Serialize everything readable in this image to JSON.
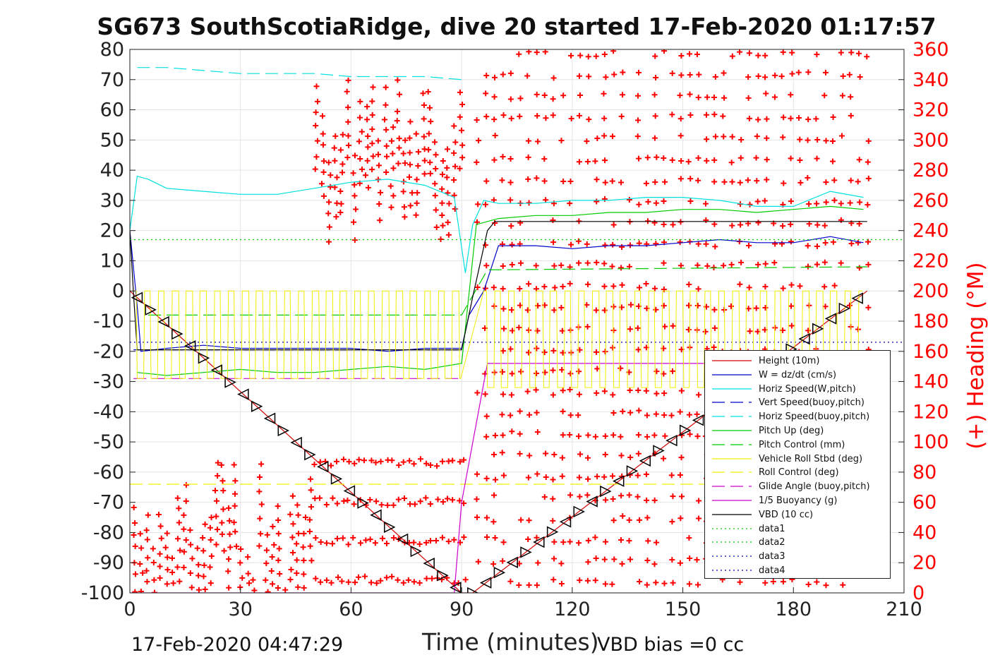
{
  "chart_data": {
    "title": "SG673 SouthScotiaRidge, dive 20 started 17-Feb-2020 01:17:57",
    "xlabel": "Time (minutes)",
    "ylabel_right": "(+) Heading (°M)",
    "footer_left": "17-Feb-2020 04:47:29",
    "footer_right": "VBD bias =0 cc",
    "xlim": [
      0,
      210
    ],
    "ylim_left": [
      -100,
      80
    ],
    "ylim_right": [
      0,
      360
    ],
    "xticks": [
      "0",
      "30",
      "60",
      "90",
      "120",
      "150",
      "180",
      "210"
    ],
    "yticks_left": [
      "80",
      "70",
      "60",
      "50",
      "40",
      "30",
      "20",
      "10",
      "0",
      "-10",
      "-20",
      "-30",
      "-40",
      "-50",
      "-60",
      "-70",
      "-80",
      "-90",
      "-100"
    ],
    "yticks_right": [
      "360",
      "340",
      "320",
      "300",
      "280",
      "260",
      "240",
      "220",
      "200",
      "180",
      "160",
      "140",
      "120",
      "100",
      "80",
      "60",
      "40",
      "20",
      "0"
    ],
    "grid": true,
    "legend_position": "lower-right",
    "legend": [
      {
        "label": "Height (10m)",
        "color": "#d40000",
        "dash": "solid"
      },
      {
        "label": "W = dz/dt (cm/s)",
        "color": "#0000cc",
        "dash": "solid"
      },
      {
        "label": "Horiz Speed(W,pitch)",
        "color": "#00e0e0",
        "dash": "solid"
      },
      {
        "label": "Vert Speed(buoy,pitch)",
        "color": "#0000cc",
        "dash": "dashed"
      },
      {
        "label": "Horiz Speed(buoy,pitch)",
        "color": "#00e0e0",
        "dash": "dashed"
      },
      {
        "label": "Pitch Up (deg)",
        "color": "#00cc00",
        "dash": "solid"
      },
      {
        "label": "Pitch Control (mm)",
        "color": "#00cc00",
        "dash": "dashed"
      },
      {
        "label": "Vehicle Roll Stbd (deg)",
        "color": "#f0f000",
        "dash": "solid"
      },
      {
        "label": "Roll Control (deg)",
        "color": "#f0f000",
        "dash": "dashed"
      },
      {
        "label": "Glide Angle (buoy,pitch)",
        "color": "#cc00cc",
        "dash": "dashed"
      },
      {
        "label": "1/5 Buoyancy (g)",
        "color": "#cc00cc",
        "dash": "solid"
      },
      {
        "label": "VBD (10 cc)",
        "color": "#000000",
        "dash": "solid"
      },
      {
        "label": "data1",
        "color": "#00cc00",
        "dash": "dotted"
      },
      {
        "label": "data2",
        "color": "#00cc00",
        "dash": "dotted"
      },
      {
        "label": "data3",
        "color": "#0000aa",
        "dash": "dotted"
      },
      {
        "label": "data4",
        "color": "#0000aa",
        "dash": "dotted"
      }
    ],
    "series": [
      {
        "name": "Height (10m)",
        "x": [
          0,
          90,
          93,
          200
        ],
        "y": [
          0,
          -100,
          -100,
          0
        ]
      },
      {
        "name": "W = dz/dt (cm/s)",
        "x": [
          0,
          2,
          3,
          10,
          20,
          30,
          40,
          50,
          60,
          70,
          80,
          90,
          92,
          96,
          100,
          110,
          120,
          130,
          140,
          150,
          160,
          170,
          180,
          190,
          199
        ],
        "y": [
          20,
          -5,
          -20,
          -19,
          -18,
          -19,
          -19,
          -19,
          -19,
          -20,
          -19,
          -19,
          -8,
          0,
          15,
          15,
          14,
          15,
          15,
          16,
          17,
          16,
          16,
          18,
          16
        ]
      },
      {
        "name": "Horiz Speed(W,pitch)",
        "x": [
          0,
          2,
          5,
          10,
          20,
          30,
          40,
          50,
          60,
          70,
          80,
          88,
          91,
          93,
          96,
          100,
          110,
          120,
          130,
          140,
          150,
          160,
          170,
          180,
          190,
          199
        ],
        "y": [
          20,
          38,
          37,
          34,
          33,
          32,
          32,
          34,
          36,
          37,
          35,
          31,
          6,
          22,
          30,
          29,
          29,
          30,
          30,
          31,
          31,
          30,
          28,
          28,
          33,
          31
        ]
      },
      {
        "name": "Vert Speed(buoy,pitch)",
        "x": [
          1,
          90
        ],
        "y": [
          -19.5,
          -19.5
        ]
      },
      {
        "name": "Horiz Speed(buoy,pitch)",
        "x": [
          2,
          10,
          20,
          30,
          40,
          50,
          60,
          70,
          80,
          90
        ],
        "y": [
          74,
          74,
          73,
          72,
          72,
          72,
          71,
          71,
          71,
          70
        ]
      },
      {
        "name": "Pitch Up (deg)",
        "x": [
          2,
          10,
          20,
          30,
          40,
          50,
          60,
          70,
          80,
          90,
          94,
          100,
          110,
          120,
          130,
          140,
          150,
          160,
          170,
          180,
          190,
          199
        ],
        "y": [
          -27,
          -28,
          -27,
          -26,
          -27,
          -27,
          -26,
          -25,
          -26,
          -24,
          22,
          24,
          25,
          25,
          26,
          26,
          27,
          27,
          26,
          27,
          28,
          27
        ]
      },
      {
        "name": "Pitch Control (mm)",
        "x": [
          5,
          90,
          97,
          200
        ],
        "y": [
          -8,
          -8,
          7,
          8
        ]
      },
      {
        "name": "Roll Control (deg)",
        "x": [
          0,
          90,
          97,
          200
        ],
        "y": [
          -64,
          -64,
          -64,
          -64
        ]
      },
      {
        "name": "Glide Angle (buoy,pitch)",
        "x": [
          1,
          90
        ],
        "y": [
          -29,
          -29
        ]
      },
      {
        "name": "1/5 Buoyancy (g)",
        "x": [
          0,
          88,
          90,
          97,
          99,
          200
        ],
        "y": [
          -100,
          -100,
          -70,
          -24,
          -24,
          -24
        ]
      },
      {
        "name": "VBD (10 cc)",
        "x": [
          0,
          1,
          2,
          90,
          93,
          97,
          99,
          200
        ],
        "y": [
          20,
          -1,
          -19.5,
          -19.5,
          -2,
          20,
          23,
          23
        ]
      },
      {
        "name": "data1",
        "x": [
          0,
          210
        ],
        "y": [
          17,
          17
        ]
      },
      {
        "name": "data3",
        "x": [
          0,
          210
        ],
        "y": [
          -17,
          -17
        ]
      }
    ],
    "heading_markers": "red + markers, right axis, 0-360 °M"
  }
}
